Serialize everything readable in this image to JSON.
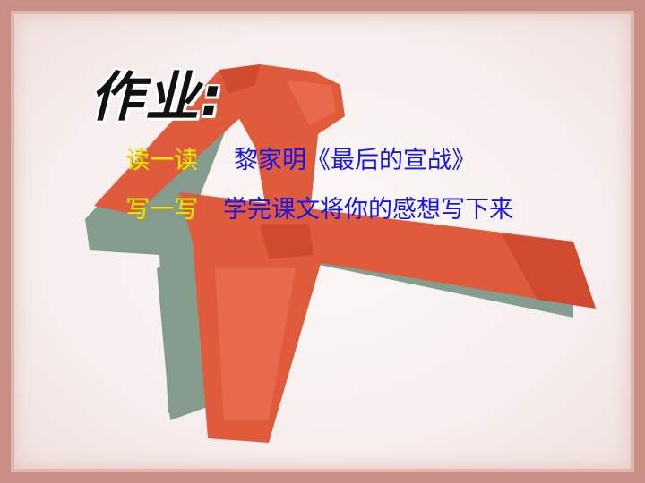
{
  "slide": {
    "title": "作业:",
    "tasks": [
      {
        "label": "读一读",
        "content": "黎家明《最后的宣战》"
      },
      {
        "label": "写一写",
        "content": "学完课文将你的感想写下来"
      }
    ]
  },
  "graphic": {
    "icon": "red-ribbon-icon"
  },
  "colors": {
    "ribbon_red": "#e05a3c",
    "ribbon_shadow": "#7f9a8c",
    "frame": "#c98f86",
    "label_yellow": "#f2e11a",
    "content_blue": "#1515e8"
  }
}
